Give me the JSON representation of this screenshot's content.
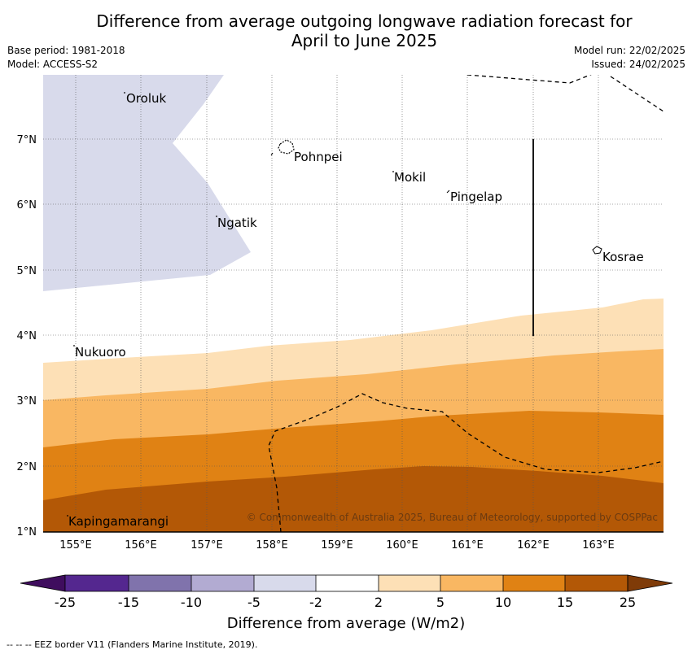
{
  "title_line1": "Difference from average outgoing longwave radiation forecast for",
  "title_line2": "April to June 2025",
  "base_period": "Base period: 1981-2018",
  "model": "Model: ACCESS-S2",
  "model_run": "Model run: 22/02/2025",
  "issued": "Issued: 24/02/2025",
  "lat_labels": [
    "7°N",
    "6°N",
    "5°N",
    "4°N",
    "3°N",
    "2°N",
    "1°N"
  ],
  "lon_labels": [
    "155°E",
    "156°E",
    "157°E",
    "158°E",
    "159°E",
    "160°E",
    "161°E",
    "162°E",
    "163°E"
  ],
  "places": {
    "oroluk": "Oroluk",
    "pohnpei": "Pohnpei",
    "mokil": "Mokil",
    "pingelap": "Pingelap",
    "ngatik": "Ngatik",
    "kosrae": "Kosrae",
    "nukuoro": "Nukuoro",
    "kapingamarangi": "Kapingamarangi"
  },
  "copyright": "© Commonwealth of Australia 2025, Bureau of Meteorology, supported by COSPPac",
  "colorbar": {
    "ticks": [
      "-25",
      "-15",
      "-10",
      "-5",
      "-2",
      "2",
      "5",
      "10",
      "15",
      "25"
    ],
    "label": "Difference from average (W/m2)",
    "colors": [
      "#3f0d5e",
      "#54278f",
      "#8073ac",
      "#b2abd2",
      "#d8daeb",
      "#ffffff",
      "#fde0b6",
      "#f9b762",
      "#e08214",
      "#b35806",
      "#7f3b08"
    ]
  },
  "footer": "--  --  -- EEZ border V11 (Flanders Marine Institute, 2019)."
}
